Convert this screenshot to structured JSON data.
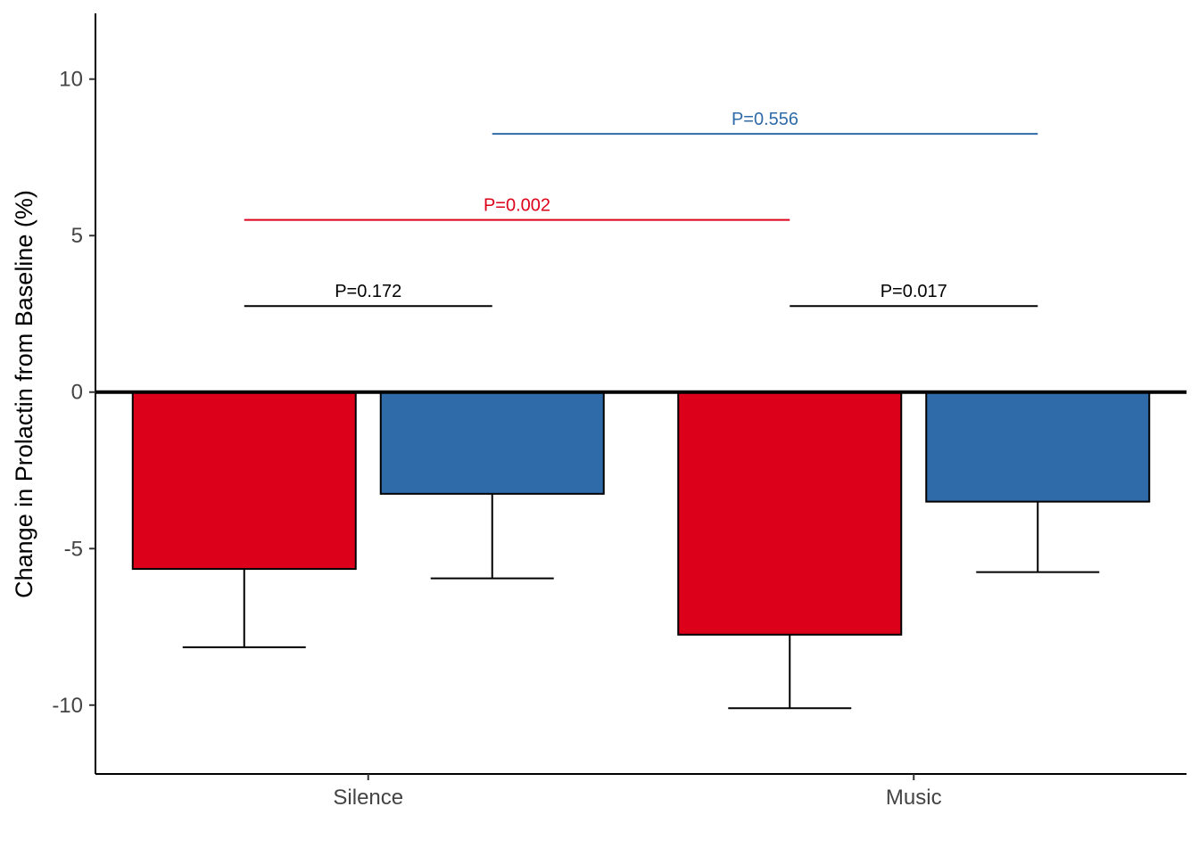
{
  "chart_data": {
    "type": "bar",
    "title": "",
    "xlabel": "",
    "ylabel": "Change in Prolactin from Baseline (%)",
    "ylim": [
      -12.2,
      12.1
    ],
    "yticks": [
      10,
      5,
      0,
      -5,
      -10
    ],
    "ytick_labels": [
      "10",
      "5",
      "0",
      "-5",
      "-10"
    ],
    "categories": [
      "Silence",
      "Music"
    ],
    "grid": false,
    "legend": "none",
    "series": [
      {
        "color": "#DC001A",
        "values": [
          -5.65,
          -7.75
        ],
        "error_lower": [
          -8.15,
          -10.1
        ]
      },
      {
        "color": "#2E6BA8",
        "values": [
          -3.25,
          -3.5
        ],
        "error_lower": [
          -5.95,
          -5.75
        ]
      }
    ],
    "annotations": [
      {
        "text": "P=0.172",
        "color": "#000000",
        "y": 2.75,
        "from_category": 0,
        "from_series": 0,
        "to_category": 0,
        "to_series": 1
      },
      {
        "text": "P=0.017",
        "color": "#000000",
        "y": 2.75,
        "from_category": 1,
        "from_series": 0,
        "to_category": 1,
        "to_series": 1
      },
      {
        "text": "P=0.002",
        "color": "#DC001A",
        "y": 5.5,
        "from_category": 0,
        "from_series": 0,
        "to_category": 1,
        "to_series": 0
      },
      {
        "text": "P=0.556",
        "color": "#2E6BA8",
        "y": 8.25,
        "from_category": 0,
        "from_series": 1,
        "to_category": 1,
        "to_series": 1
      }
    ]
  }
}
